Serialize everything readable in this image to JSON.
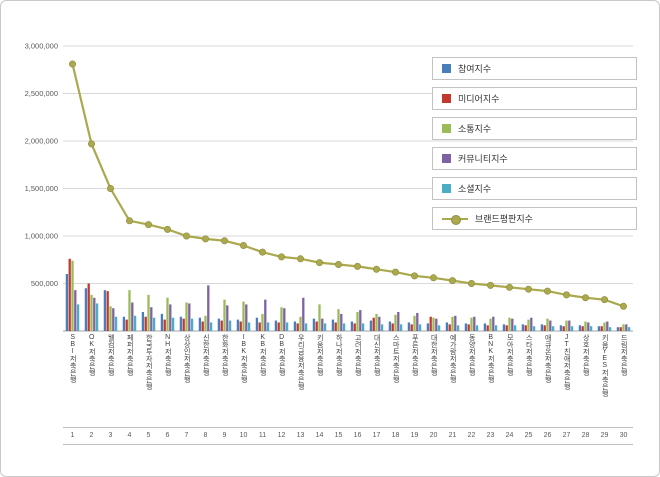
{
  "chart_data": {
    "type": "bar",
    "note": "grouped bars with overlay line, brand reputation index of Korean savings banks",
    "title": "",
    "xlabel": "",
    "ylabel": "",
    "ylim": [
      0,
      3000000
    ],
    "ytick_step": 500000,
    "grid": true,
    "legend_position": "right-inside",
    "ranks": [
      "1",
      "2",
      "3",
      "4",
      "5",
      "6",
      "7",
      "8",
      "9",
      "10",
      "11",
      "12",
      "13",
      "14",
      "15",
      "16",
      "17",
      "18",
      "19",
      "20",
      "21",
      "22",
      "23",
      "24",
      "25",
      "26",
      "27",
      "28",
      "29",
      "30"
    ],
    "categories": [
      "SBI저축은행",
      "OK저축은행",
      "웰컴저축은행",
      "페퍼저축은행",
      "한국투자저축은행",
      "NH저축은행",
      "상상인저축은행",
      "신한저축은행",
      "한화저축은행",
      "IBK저축은행",
      "KB저축은행",
      "DB저축은행",
      "우리금융저축은행",
      "키움저축은행",
      "하나저축은행",
      "고려저축은행",
      "대신저축은행",
      "스마트저축은행",
      "푸른저축은행",
      "대한저축은행",
      "예가람저축은행",
      "동양저축은행",
      "BNK저축은행",
      "모아저축은행",
      "스타저축은행",
      "애큐온저축은행",
      "JT친애저축은행",
      "상호저축은행",
      "키움YES저축은행",
      "드림저축은행"
    ],
    "series": [
      {
        "name": "참여지수",
        "type": "bar",
        "color": "#4a7ebb",
        "values": [
          600000,
          450000,
          430000,
          150000,
          200000,
          180000,
          150000,
          140000,
          130000,
          120000,
          140000,
          110000,
          100000,
          130000,
          120000,
          100000,
          110000,
          100000,
          90000,
          80000,
          90000,
          80000,
          80000,
          70000,
          70000,
          70000,
          60000,
          60000,
          50000,
          40000
        ]
      },
      {
        "name": "미디어지수",
        "type": "bar",
        "color": "#c1392e",
        "values": [
          760000,
          500000,
          420000,
          120000,
          150000,
          120000,
          130000,
          100000,
          110000,
          100000,
          90000,
          90000,
          80000,
          100000,
          90000,
          80000,
          140000,
          80000,
          70000,
          150000,
          70000,
          70000,
          60000,
          60000,
          60000,
          60000,
          50000,
          50000,
          50000,
          40000
        ]
      },
      {
        "name": "소통지수",
        "type": "bar",
        "color": "#9bbb59",
        "values": [
          740000,
          380000,
          260000,
          430000,
          380000,
          350000,
          300000,
          160000,
          330000,
          310000,
          180000,
          250000,
          150000,
          280000,
          230000,
          200000,
          180000,
          170000,
          160000,
          140000,
          150000,
          140000,
          130000,
          140000,
          120000,
          130000,
          110000,
          100000,
          90000,
          70000
        ]
      },
      {
        "name": "커뮤니티지수",
        "type": "bar",
        "color": "#7e62a1",
        "values": [
          430000,
          350000,
          240000,
          300000,
          250000,
          280000,
          290000,
          480000,
          270000,
          280000,
          330000,
          240000,
          350000,
          130000,
          180000,
          220000,
          150000,
          200000,
          190000,
          130000,
          160000,
          150000,
          150000,
          130000,
          140000,
          110000,
          110000,
          90000,
          100000,
          70000
        ]
      },
      {
        "name": "소셜지수",
        "type": "bar",
        "color": "#4bacc6",
        "values": [
          280000,
          290000,
          150000,
          160000,
          140000,
          140000,
          130000,
          90000,
          110000,
          90000,
          90000,
          90000,
          80000,
          80000,
          80000,
          80000,
          70000,
          70000,
          70000,
          60000,
          60000,
          60000,
          60000,
          60000,
          50000,
          50000,
          50000,
          50000,
          40000,
          40000
        ]
      },
      {
        "name": "브랜드평판지수",
        "type": "line",
        "color": "#aba94e",
        "marker_edge": "#8f8d3c",
        "values": [
          2810000,
          1970000,
          1500000,
          1160000,
          1120000,
          1070000,
          1000000,
          970000,
          950000,
          900000,
          830000,
          780000,
          760000,
          720000,
          700000,
          680000,
          650000,
          620000,
          580000,
          560000,
          530000,
          500000,
          480000,
          460000,
          440000,
          420000,
          380000,
          350000,
          330000,
          260000
        ]
      }
    ],
    "colors": {
      "gridline": "#d9d9d9",
      "axis": "#a6a6a6",
      "tick_text": "#595959",
      "category_text": "#3f3f3f"
    },
    "ytick_labels": [
      "500,000",
      "1,000,000",
      "1,500,000",
      "2,000,000",
      "2,500,000",
      "3,000,000"
    ]
  }
}
